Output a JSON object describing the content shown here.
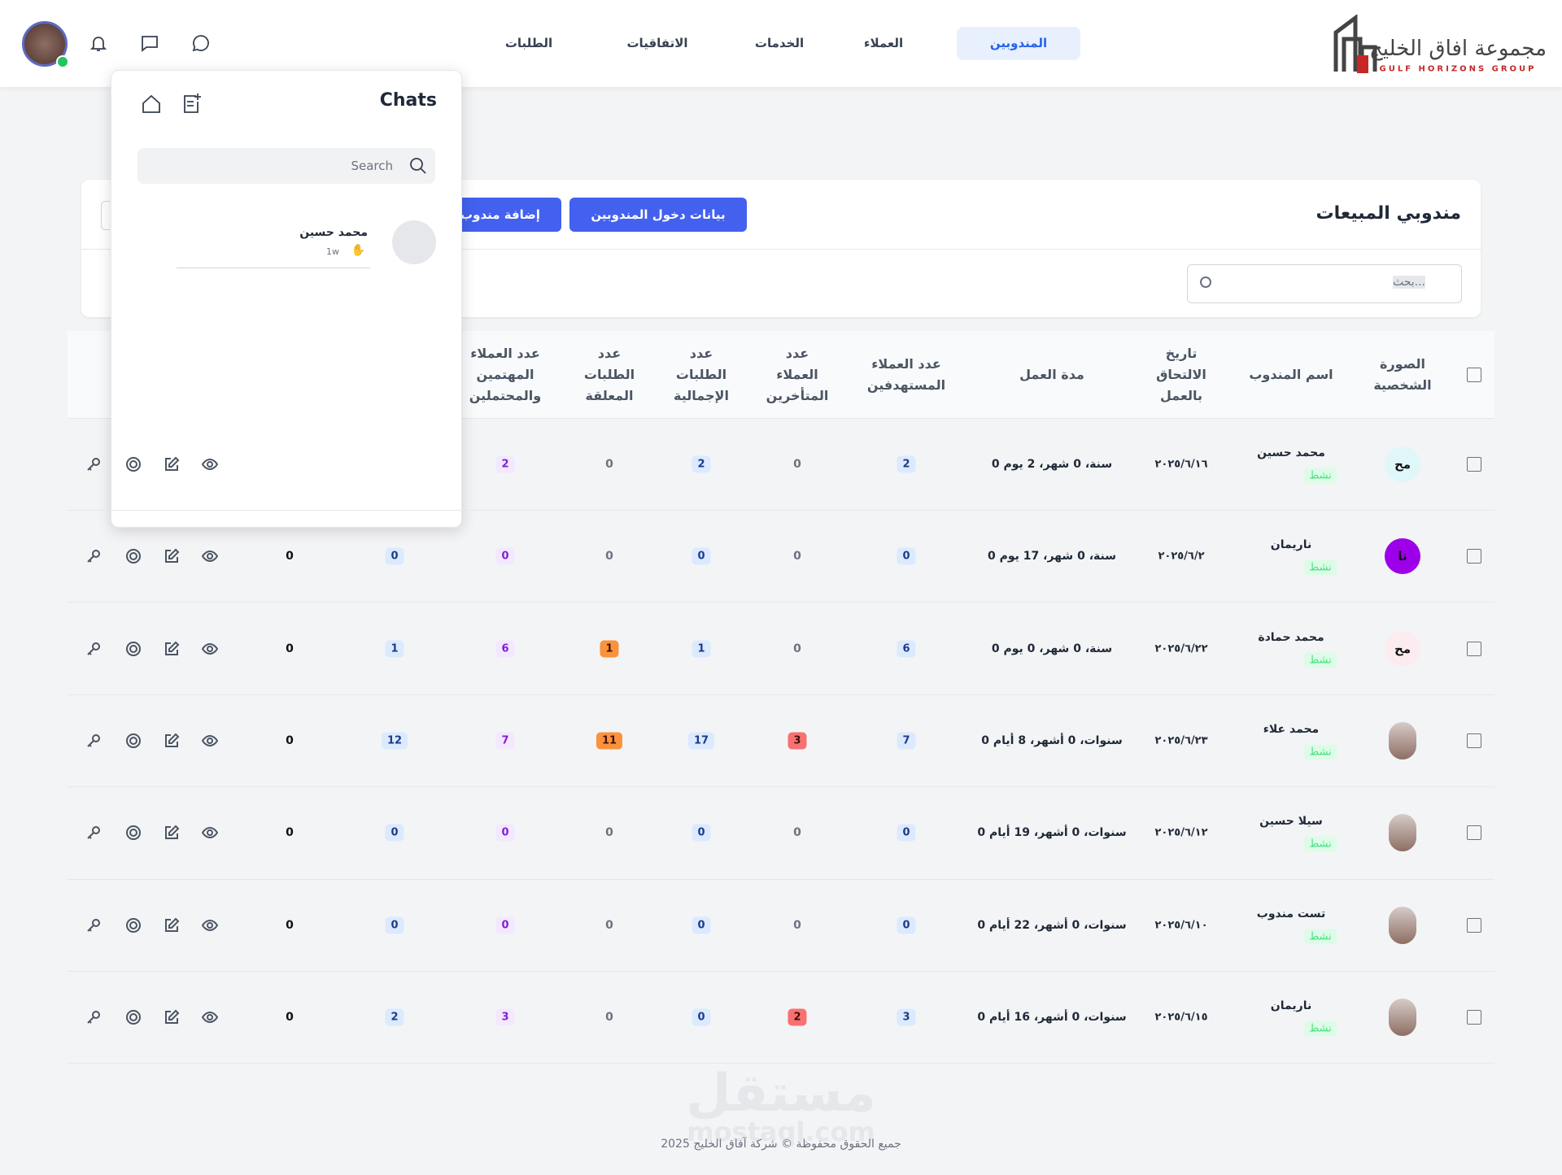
{
  "header": {
    "logo_title": "مجموعة افاق الخليج",
    "logo_subtitle": "GULF HORIZONS GROUP",
    "nav": [
      "المندوبين",
      "العملاء",
      "الخدمات",
      "الاتفاقيات",
      "الطلبات"
    ]
  },
  "chats": {
    "title": "Chats",
    "search_placeholder": "Search",
    "items": [
      {
        "name": "محمد حسين",
        "emoji": "✋",
        "time": "1w"
      }
    ]
  },
  "page": {
    "title": "مندوبي المبيعات",
    "buttons": [
      "بيانات دخول المندوبين",
      "إضافة مندوب"
    ],
    "search_placeholder": "بحث..."
  },
  "table": {
    "headers": [
      "الصورة الشخصية",
      "اسم المندوب",
      "تاريخ الالتحاق بالعمل",
      "مدة العمل",
      "عدد العملاء المستهدفين",
      "عدد العملاء المتأخرين",
      "عدد الطلبات الإجمالية",
      "عدد الطلبات المعلقة",
      "عدد العملاء المهتمين والمحتملين"
    ],
    "rows": [
      {
        "initials": "مح",
        "name": "محمد حسين",
        "status": "نشط",
        "date": "٢٠٢٥/٦/١٦",
        "duration": "0 سنة، 0 شهر، 2 يوم",
        "counts": [
          2,
          0,
          2,
          0,
          2,
          null,
          null
        ]
      },
      {
        "initials": "نا",
        "name": "ناريمان",
        "status": "نشط",
        "date": "٢٠٢٥/٦/٢",
        "duration": "0 سنة، 0 شهر، 17 يوم",
        "counts": [
          0,
          0,
          0,
          0,
          0,
          0,
          0
        ]
      },
      {
        "initials": "مح",
        "name": "محمد حمادة",
        "status": "نشط",
        "date": "٢٠٢٥/٦/٢٢",
        "duration": "0 سنة، 0 شهر، 0 يوم",
        "counts": [
          6,
          0,
          1,
          1,
          6,
          1,
          0
        ]
      },
      {
        "name": "محمد علاء",
        "status": "نشط",
        "date": "٢٠٢٥/٦/٢٣",
        "duration": "0 سنوات، 0 أشهر، 8 أيام",
        "counts": [
          7,
          3,
          17,
          11,
          7,
          12,
          0
        ]
      },
      {
        "name": "سيلا حسين",
        "status": "نشط",
        "date": "٢٠٢٥/٦/١٢",
        "duration": "0 سنوات، 0 أشهر، 19 أيام",
        "counts": [
          0,
          0,
          0,
          0,
          0,
          0,
          0
        ]
      },
      {
        "name": "تست مندوب",
        "status": "نشط",
        "date": "٢٠٢٥/٦/١٠",
        "duration": "0 سنوات، 0 أشهر، 22 أيام",
        "counts": [
          0,
          0,
          0,
          0,
          0,
          0,
          0
        ]
      },
      {
        "name": "ناريمان",
        "status": "نشط",
        "date": "٢٠٢٥/٦/١٥",
        "duration": "0 سنوات، 0 أشهر، 16 أيام",
        "counts": [
          3,
          2,
          0,
          0,
          3,
          2,
          0
        ]
      }
    ]
  },
  "footer": {
    "copyright": "جميع الحقوق محفوظة © شركة آفاق الخليج 2025",
    "watermark": "مستقل",
    "watermark_url": "mostaql.com"
  }
}
